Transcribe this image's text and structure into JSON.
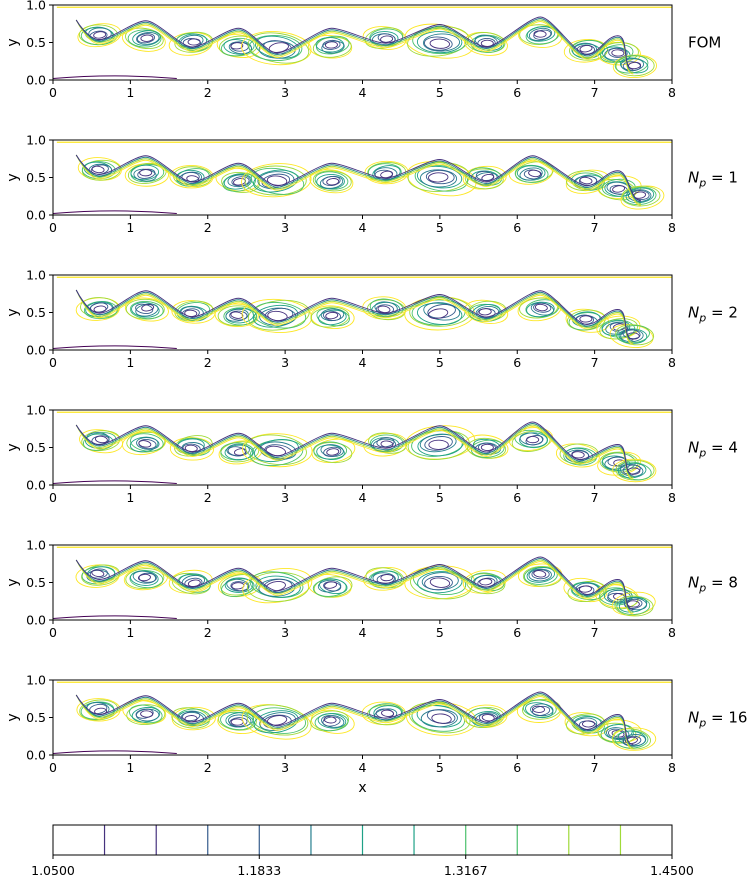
{
  "chart_data": [
    {
      "type": "contour",
      "row_label": "FOM",
      "xlabel": "",
      "ylabel": "y",
      "xlim": [
        0,
        8
      ],
      "ylim": [
        0,
        1
      ],
      "xticks": [
        "0",
        "1",
        "2",
        "3",
        "4",
        "5",
        "6",
        "7",
        "8"
      ],
      "yticks": [
        "0.0",
        "0.5",
        "1.0"
      ],
      "vortex_x": [
        0.6,
        1.2,
        1.8,
        2.4,
        2.9,
        3.6,
        4.3,
        5.0,
        5.6,
        6.3,
        6.9,
        7.3,
        7.5
      ],
      "vortex_y": [
        0.6,
        0.55,
        0.5,
        0.45,
        0.42,
        0.45,
        0.55,
        0.5,
        0.5,
        0.6,
        0.4,
        0.35,
        0.2
      ]
    },
    {
      "type": "contour",
      "row_label": "N_p = 1",
      "label_main": "N",
      "label_sub": "p",
      "label_rest": " = 1",
      "xlabel": "",
      "ylabel": "y",
      "xlim": [
        0,
        8
      ],
      "ylim": [
        0,
        1
      ],
      "xticks": [
        "0",
        "1",
        "2",
        "3",
        "4",
        "5",
        "6",
        "7",
        "8"
      ],
      "yticks": [
        "0.0",
        "0.5",
        "1.0"
      ],
      "vortex_x": [
        0.6,
        1.2,
        1.8,
        2.4,
        2.9,
        3.6,
        4.3,
        5.0,
        5.6,
        6.2,
        6.9,
        7.3,
        7.6
      ],
      "vortex_y": [
        0.6,
        0.55,
        0.5,
        0.45,
        0.45,
        0.45,
        0.55,
        0.5,
        0.5,
        0.55,
        0.45,
        0.35,
        0.25
      ]
    },
    {
      "type": "contour",
      "row_label": "N_p = 2",
      "label_main": "N",
      "label_sub": "p",
      "label_rest": " = 2",
      "xlabel": "",
      "ylabel": "y",
      "xlim": [
        0,
        8
      ],
      "ylim": [
        0,
        1
      ],
      "xticks": [
        "0",
        "1",
        "2",
        "3",
        "4",
        "5",
        "6",
        "7",
        "8"
      ],
      "yticks": [
        "0.0",
        "0.5",
        "1.0"
      ],
      "vortex_x": [
        0.6,
        1.2,
        1.8,
        2.4,
        2.9,
        3.6,
        4.3,
        5.0,
        5.6,
        6.3,
        6.9,
        7.3,
        7.5
      ],
      "vortex_y": [
        0.55,
        0.55,
        0.5,
        0.45,
        0.45,
        0.45,
        0.55,
        0.5,
        0.5,
        0.55,
        0.4,
        0.3,
        0.2
      ]
    },
    {
      "type": "contour",
      "row_label": "N_p = 4",
      "label_main": "N",
      "label_sub": "p",
      "label_rest": " = 4",
      "xlabel": "",
      "ylabel": "y",
      "xlim": [
        0,
        8
      ],
      "ylim": [
        0,
        1
      ],
      "xticks": [
        "0",
        "1",
        "2",
        "3",
        "4",
        "5",
        "6",
        "7",
        "8"
      ],
      "yticks": [
        "0.0",
        "0.5",
        "1.0"
      ],
      "vortex_x": [
        0.6,
        1.2,
        1.8,
        2.4,
        2.9,
        3.6,
        4.3,
        5.0,
        5.6,
        6.2,
        6.8,
        7.3,
        7.5
      ],
      "vortex_y": [
        0.6,
        0.55,
        0.5,
        0.45,
        0.45,
        0.45,
        0.55,
        0.55,
        0.5,
        0.6,
        0.4,
        0.3,
        0.2
      ]
    },
    {
      "type": "contour",
      "row_label": "N_p = 8",
      "label_main": "N",
      "label_sub": "p",
      "label_rest": " = 8",
      "xlabel": "",
      "ylabel": "y",
      "xlim": [
        0,
        8
      ],
      "ylim": [
        0,
        1
      ],
      "xticks": [
        "0",
        "1",
        "2",
        "3",
        "4",
        "5",
        "6",
        "7",
        "8"
      ],
      "yticks": [
        "0.0",
        "0.5",
        "1.0"
      ],
      "vortex_x": [
        0.6,
        1.2,
        1.8,
        2.4,
        2.9,
        3.6,
        4.3,
        5.0,
        5.6,
        6.3,
        6.9,
        7.3,
        7.5
      ],
      "vortex_y": [
        0.6,
        0.55,
        0.5,
        0.45,
        0.45,
        0.45,
        0.55,
        0.5,
        0.5,
        0.6,
        0.4,
        0.3,
        0.2
      ]
    },
    {
      "type": "contour",
      "row_label": "N_p = 16",
      "label_main": "N",
      "label_sub": "p",
      "label_rest": " = 16",
      "xlabel": "x",
      "ylabel": "y",
      "xlim": [
        0,
        8
      ],
      "ylim": [
        0,
        1
      ],
      "xticks": [
        "0",
        "1",
        "2",
        "3",
        "4",
        "5",
        "6",
        "7",
        "8"
      ],
      "yticks": [
        "0.0",
        "0.5",
        "1.0"
      ],
      "vortex_x": [
        0.6,
        1.2,
        1.8,
        2.4,
        2.9,
        3.6,
        4.3,
        5.0,
        5.6,
        6.3,
        6.9,
        7.3,
        7.5
      ],
      "vortex_y": [
        0.6,
        0.55,
        0.5,
        0.45,
        0.45,
        0.45,
        0.55,
        0.5,
        0.5,
        0.6,
        0.4,
        0.3,
        0.2
      ]
    },
    {
      "type": "colorbar",
      "range": [
        1.05,
        1.45
      ],
      "levels": [
        1.05,
        1.0833,
        1.1167,
        1.15,
        1.1833,
        1.2167,
        1.25,
        1.2833,
        1.3167,
        1.35,
        1.3833,
        1.4167,
        1.45
      ],
      "tick_labels": [
        "1.0500",
        "1.1833",
        "1.3167",
        "1.4500"
      ],
      "tick_values": [
        1.05,
        1.1833,
        1.3167,
        1.45
      ],
      "colormap": "viridis",
      "colors": [
        "#440154",
        "#46327e",
        "#365c8d",
        "#277f8e",
        "#1fa187",
        "#4ac16d",
        "#a0da39",
        "#fde725"
      ]
    }
  ]
}
